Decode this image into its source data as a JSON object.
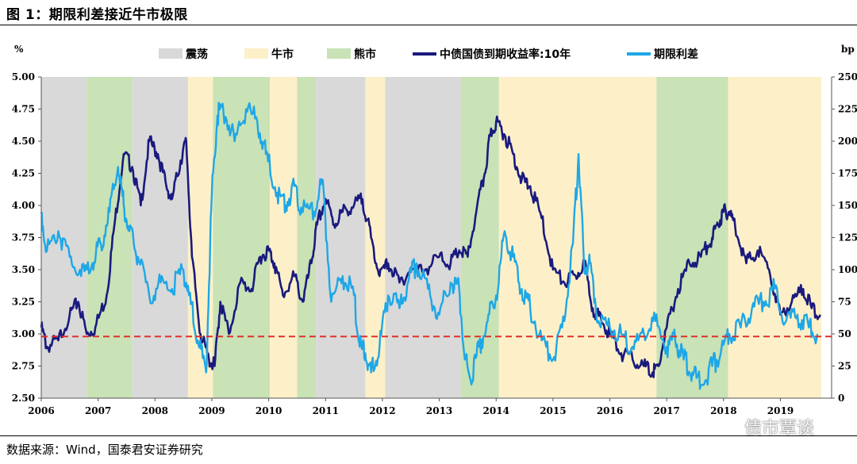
{
  "figure": {
    "title": "图 1：期限利差接近牛市极限",
    "source": "数据来源：Wind，国泰君安证券研究",
    "watermark": "债市覃谈"
  },
  "chart_data": {
    "type": "line",
    "left_unit": "%",
    "right_unit": "bp",
    "ylim_left": [
      2.5,
      5.0
    ],
    "ylim_right": [
      0,
      250
    ],
    "xlim": [
      2006.0,
      2019.9
    ],
    "left_ticks": [
      "5.00",
      "4.75",
      "4.50",
      "4.25",
      "4.00",
      "3.75",
      "3.50",
      "3.25",
      "3.00",
      "2.75",
      "2.50"
    ],
    "right_ticks": [
      "250",
      "225",
      "200",
      "175",
      "150",
      "125",
      "100",
      "75",
      "50",
      "25",
      "0"
    ],
    "x_ticks": [
      "2006",
      "2007",
      "2008",
      "2009",
      "2010",
      "2011",
      "2012",
      "2013",
      "2014",
      "2015",
      "2016",
      "2017",
      "2018",
      "2019"
    ],
    "legend": [
      {
        "label": "震荡",
        "kind": "patch",
        "color": "#d9d9d9"
      },
      {
        "label": "牛市",
        "kind": "patch",
        "color": "#fdf0c8"
      },
      {
        "label": "熊市",
        "kind": "patch",
        "color": "#c9e2b6"
      },
      {
        "label": "中债国债到期收益率:10年",
        "kind": "line",
        "color": "#1a1a7e"
      },
      {
        "label": "期限利差",
        "kind": "line",
        "color": "#1ea7e6"
      }
    ],
    "regimes": [
      {
        "start": 2006.0,
        "end": 2006.8,
        "type": "震荡"
      },
      {
        "start": 2006.8,
        "end": 2007.6,
        "type": "熊市"
      },
      {
        "start": 2007.6,
        "end": 2008.58,
        "type": "震荡"
      },
      {
        "start": 2008.58,
        "end": 2009.02,
        "type": "牛市"
      },
      {
        "start": 2009.02,
        "end": 2010.02,
        "type": "熊市"
      },
      {
        "start": 2010.02,
        "end": 2010.5,
        "type": "牛市"
      },
      {
        "start": 2010.5,
        "end": 2010.83,
        "type": "熊市"
      },
      {
        "start": 2010.83,
        "end": 2011.7,
        "type": "震荡"
      },
      {
        "start": 2011.7,
        "end": 2012.05,
        "type": "牛市"
      },
      {
        "start": 2012.05,
        "end": 2013.38,
        "type": "震荡"
      },
      {
        "start": 2013.38,
        "end": 2014.05,
        "type": "熊市"
      },
      {
        "start": 2014.05,
        "end": 2016.82,
        "type": "牛市"
      },
      {
        "start": 2016.82,
        "end": 2018.08,
        "type": "熊市"
      },
      {
        "start": 2018.08,
        "end": 2019.72,
        "type": "牛市"
      }
    ],
    "series": [
      {
        "name": "中债国债到期收益率:10年",
        "axis": "left",
        "color": "#1a1a7e",
        "x": [
          2006.0,
          2006.1,
          2006.3,
          2006.5,
          2006.65,
          2006.8,
          2006.95,
          2007.15,
          2007.3,
          2007.45,
          2007.6,
          2007.75,
          2007.9,
          2008.05,
          2008.2,
          2008.3,
          2008.45,
          2008.55,
          2008.65,
          2008.8,
          2008.95,
          2009.05,
          2009.15,
          2009.3,
          2009.5,
          2009.7,
          2009.85,
          2010.0,
          2010.1,
          2010.25,
          2010.45,
          2010.6,
          2010.75,
          2010.85,
          2011.0,
          2011.15,
          2011.3,
          2011.5,
          2011.65,
          2011.8,
          2011.95,
          2012.1,
          2012.3,
          2012.5,
          2012.75,
          2013.0,
          2013.2,
          2013.35,
          2013.5,
          2013.65,
          2013.8,
          2013.9,
          2014.0,
          2014.15,
          2014.3,
          2014.45,
          2014.6,
          2014.8,
          2015.0,
          2015.2,
          2015.4,
          2015.55,
          2015.7,
          2015.85,
          2016.0,
          2016.2,
          2016.4,
          2016.6,
          2016.75,
          2016.85,
          2017.0,
          2017.2,
          2017.4,
          2017.6,
          2017.8,
          2017.9,
          2018.0,
          2018.1,
          2018.2,
          2018.4,
          2018.6,
          2018.8,
          2019.0,
          2019.2,
          2019.4,
          2019.55,
          2019.7
        ],
        "values": [
          3.05,
          2.9,
          2.95,
          3.15,
          3.25,
          3.0,
          3.05,
          3.3,
          3.9,
          4.4,
          4.3,
          4.0,
          4.5,
          4.4,
          4.15,
          4.05,
          4.35,
          4.5,
          3.6,
          3.0,
          2.8,
          2.75,
          3.25,
          3.0,
          3.4,
          3.35,
          3.6,
          3.65,
          3.55,
          3.3,
          3.45,
          3.25,
          3.55,
          3.85,
          4.05,
          3.85,
          3.95,
          4.0,
          4.05,
          3.75,
          3.45,
          3.55,
          3.4,
          3.5,
          3.5,
          3.6,
          3.55,
          3.65,
          3.6,
          3.95,
          4.25,
          4.55,
          4.65,
          4.55,
          4.4,
          4.2,
          4.15,
          3.9,
          3.5,
          3.4,
          3.45,
          3.55,
          3.2,
          3.1,
          3.0,
          2.85,
          2.8,
          2.75,
          2.7,
          2.75,
          3.05,
          3.35,
          3.55,
          3.6,
          3.75,
          3.85,
          3.95,
          3.95,
          3.85,
          3.55,
          3.65,
          3.5,
          3.15,
          3.25,
          3.35,
          3.2,
          3.15
        ]
      },
      {
        "name": "期限利差",
        "axis": "right",
        "color": "#1ea7e6",
        "x": [
          2006.0,
          2006.1,
          2006.3,
          2006.5,
          2006.7,
          2006.9,
          2007.05,
          2007.2,
          2007.35,
          2007.45,
          2007.55,
          2007.7,
          2007.9,
          2008.1,
          2008.3,
          2008.5,
          2008.6,
          2008.75,
          2008.9,
          2009.0,
          2009.1,
          2009.2,
          2009.4,
          2009.6,
          2009.8,
          2009.95,
          2010.15,
          2010.3,
          2010.45,
          2010.6,
          2010.8,
          2010.95,
          2011.1,
          2011.3,
          2011.5,
          2011.6,
          2011.7,
          2011.8,
          2011.95,
          2012.1,
          2012.3,
          2012.45,
          2012.6,
          2012.8,
          2013.0,
          2013.2,
          2013.35,
          2013.45,
          2013.55,
          2013.7,
          2013.85,
          2014.0,
          2014.15,
          2014.3,
          2014.45,
          2014.6,
          2014.8,
          2015.0,
          2015.2,
          2015.35,
          2015.45,
          2015.55,
          2015.65,
          2015.8,
          2016.0,
          2016.2,
          2016.4,
          2016.6,
          2016.8,
          2017.0,
          2017.15,
          2017.3,
          2017.45,
          2017.6,
          2017.8,
          2017.95,
          2018.1,
          2018.3,
          2018.5,
          2018.7,
          2018.9,
          2019.1,
          2019.3,
          2019.5,
          2019.65
        ],
        "values": [
          145,
          115,
          130,
          110,
          95,
          105,
          120,
          145,
          180,
          150,
          130,
          110,
          80,
          90,
          85,
          100,
          80,
          45,
          20,
          160,
          220,
          225,
          200,
          225,
          215,
          190,
          160,
          150,
          165,
          145,
          145,
          170,
          75,
          95,
          80,
          40,
          35,
          20,
          40,
          80,
          70,
          90,
          105,
          85,
          65,
          90,
          85,
          30,
          15,
          40,
          60,
          80,
          130,
          110,
          85,
          70,
          45,
          30,
          60,
          120,
          190,
          100,
          105,
          60,
          55,
          50,
          40,
          50,
          60,
          40,
          45,
          30,
          20,
          10,
          25,
          35,
          50,
          55,
          70,
          75,
          85,
          60,
          65,
          55,
          50
        ]
      }
    ],
    "reference_line": {
      "value": 2.98,
      "axis": "left",
      "color": "#e0302a",
      "style": "dashed"
    }
  }
}
